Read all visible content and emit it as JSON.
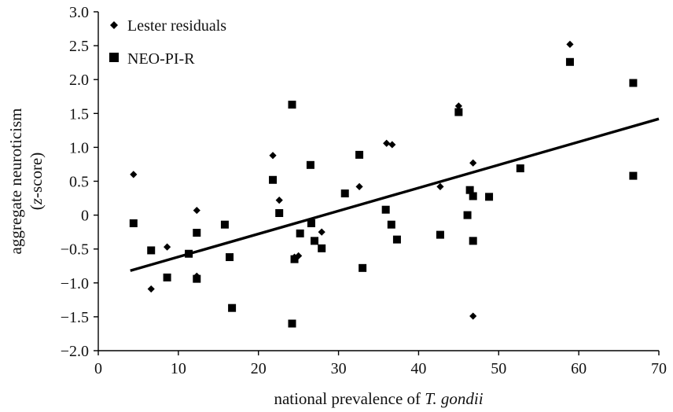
{
  "chart_data": {
    "type": "scatter",
    "xlabel": {
      "prefix": "national prevalence of ",
      "italic": "T. gondii"
    },
    "ylabel": {
      "line1": "aggregate neuroticism",
      "line2_italic": "z",
      "line2_rest": "-score)",
      "line2_open": "("
    },
    "xlim": [
      0,
      70
    ],
    "ylim": [
      -2.0,
      3.0
    ],
    "x_ticks": [
      "0",
      "10",
      "20",
      "30",
      "40",
      "50",
      "60",
      "70"
    ],
    "y_ticks": [
      "3.0",
      "2.5",
      "2.0",
      "1.5",
      "1.0",
      "0.5",
      "0",
      "−0.5",
      "−1.0",
      "−1.5",
      "−2.0"
    ],
    "grid": false,
    "legend_position": "top-left",
    "series": [
      {
        "name": "Lester residuals",
        "marker": "diamond",
        "points": [
          [
            4.4,
            0.6
          ],
          [
            6.6,
            -1.09
          ],
          [
            8.6,
            -0.47
          ],
          [
            12.3,
            0.07
          ],
          [
            12.3,
            -0.9
          ],
          [
            21.8,
            0.88
          ],
          [
            22.6,
            0.22
          ],
          [
            24.5,
            -0.62
          ],
          [
            25.0,
            -0.6
          ],
          [
            27.9,
            -0.25
          ],
          [
            32.6,
            0.42
          ],
          [
            36.0,
            1.06
          ],
          [
            36.7,
            1.04
          ],
          [
            42.7,
            0.42
          ],
          [
            45.0,
            1.61
          ],
          [
            46.8,
            0.77
          ],
          [
            46.8,
            -1.49
          ],
          [
            58.9,
            2.52
          ]
        ]
      },
      {
        "name": "NEO-PI-R",
        "marker": "square",
        "points": [
          [
            4.4,
            -0.12
          ],
          [
            6.6,
            -0.52
          ],
          [
            8.6,
            -0.92
          ],
          [
            11.3,
            -0.57
          ],
          [
            12.3,
            -0.26
          ],
          [
            12.3,
            -0.94
          ],
          [
            15.8,
            -0.14
          ],
          [
            16.4,
            -0.62
          ],
          [
            16.7,
            -1.37
          ],
          [
            21.8,
            0.52
          ],
          [
            22.6,
            0.03
          ],
          [
            24.2,
            1.63
          ],
          [
            24.2,
            -1.6
          ],
          [
            24.5,
            -0.65
          ],
          [
            25.2,
            -0.27
          ],
          [
            26.5,
            0.74
          ],
          [
            26.6,
            -0.12
          ],
          [
            27.0,
            -0.38
          ],
          [
            27.9,
            -0.49
          ],
          [
            30.8,
            0.32
          ],
          [
            32.6,
            0.89
          ],
          [
            33.0,
            -0.78
          ],
          [
            35.9,
            0.08
          ],
          [
            36.6,
            -0.14
          ],
          [
            37.3,
            -0.36
          ],
          [
            42.7,
            -0.29
          ],
          [
            45.0,
            1.52
          ],
          [
            46.1,
            0.0
          ],
          [
            46.4,
            0.37
          ],
          [
            46.8,
            0.28
          ],
          [
            46.8,
            -0.38
          ],
          [
            48.8,
            0.27
          ],
          [
            52.7,
            0.69
          ],
          [
            58.9,
            2.26
          ],
          [
            66.8,
            1.95
          ],
          [
            66.8,
            0.58
          ]
        ]
      }
    ],
    "trendline": {
      "x": [
        4.0,
        70.0
      ],
      "y": [
        -0.82,
        1.42
      ]
    }
  }
}
